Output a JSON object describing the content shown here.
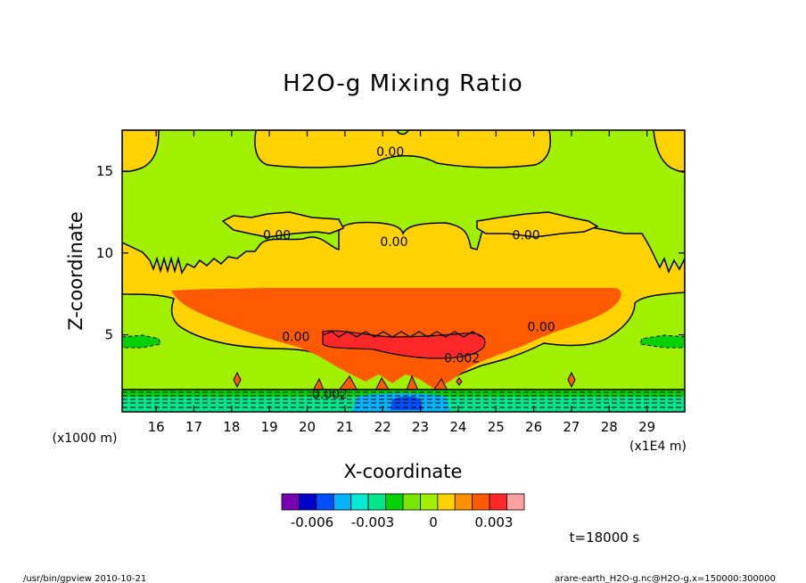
{
  "chart_data": {
    "type": "heatmap",
    "title": "H2O-g Mixing Ratio",
    "xlabel": "X-coordinate",
    "ylabel": "Z-coordinate",
    "x_unit": "(x1E4 m)",
    "y_unit": "(x1000 m)",
    "xlim": [
      15.1,
      30.0
    ],
    "ylim": [
      0.3,
      17.5
    ],
    "x_ticks": [
      16,
      17,
      18,
      19,
      20,
      21,
      22,
      23,
      24,
      25,
      26,
      27,
      28,
      29
    ],
    "y_ticks": [
      5,
      10,
      15
    ],
    "colorbar": {
      "colors": [
        "#7a00b4",
        "#0000cd",
        "#0050ff",
        "#00b4ff",
        "#00ebd2",
        "#00e68c",
        "#00d200",
        "#78e600",
        "#a0f000",
        "#ffd200",
        "#ff9100",
        "#ff5a00",
        "#ff2828",
        "#ffa0a0"
      ],
      "tick_labels": [
        "-0.006",
        "-0.003",
        "0",
        "0.003"
      ],
      "tick_values": [
        -0.006,
        -0.003,
        0,
        0.003
      ]
    },
    "contour_labels": [
      {
        "text": "0.00",
        "x": 22.2,
        "y": 16.2
      },
      {
        "text": "0.00",
        "x": 19.2,
        "y": 11.1
      },
      {
        "text": "0.00",
        "x": 22.3,
        "y": 10.7
      },
      {
        "text": "0.00",
        "x": 25.8,
        "y": 11.1
      },
      {
        "text": "0.00",
        "x": 19.7,
        "y": 4.9
      },
      {
        "text": "0.00",
        "x": 26.2,
        "y": 5.5
      },
      {
        "text": "0.002",
        "x": 24.1,
        "y": 3.6
      },
      {
        "text": "0.002",
        "x": 20.6,
        "y": 1.4
      }
    ],
    "time_label": "t=18000 s"
  },
  "footer": {
    "left": "/usr/bin/gpview   2010-10-21",
    "right": "arare-earth_H2O-g.nc@H2O-g,x=150000:300000"
  }
}
